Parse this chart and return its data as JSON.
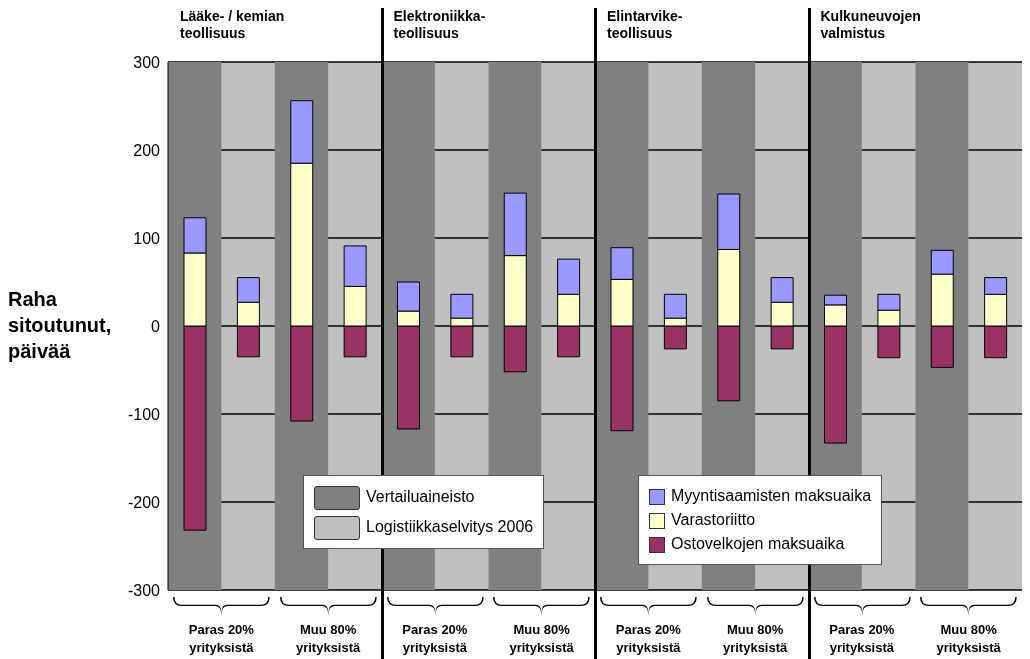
{
  "chart_data": {
    "type": "bar",
    "stacked": true,
    "ylabel": "Raha sitoutunut, päivää",
    "annotations": [
      "Lääke- / kemian\nteollisuus",
      "Elektroniikka-\nteollisuus",
      "Elintarvike-\nteollisuus",
      "Kulkuneuvojen\nvalmistus",
      "Vertailuaineisto",
      "Logistiikkaselvitys 2006"
    ],
    "categories": [
      "Paras 20% yrityksistä",
      null,
      "Muu 80% yrityksistä",
      null,
      "Paras 20% yrityksistä",
      null,
      "Muu 80% yrityksistä",
      null,
      "Paras 20% yrityksistä",
      null,
      "Muu 80% yrityksistä",
      null,
      "Paras 20% yrityksistä",
      null,
      "Muu 80% yrityksistä",
      null
    ],
    "series": [
      {
        "name": "Ostovelkojen maksuaika",
        "color": "#993366",
        "values": [
          -232,
          -35,
          -108,
          -35,
          -117,
          -35,
          -52,
          -35,
          -119,
          -26,
          -85,
          -26,
          -133,
          -36,
          -47,
          -36
        ]
      },
      {
        "name": "Varastoriitto",
        "color": "#ffffcc",
        "values": [
          83,
          27,
          185,
          45,
          17,
          9,
          80,
          36,
          53,
          9,
          87,
          27,
          24,
          18,
          59,
          36
        ]
      },
      {
        "name": "Myyntisaamisten maksuaika",
        "color": "#9999ff",
        "values": [
          40,
          28,
          71,
          46,
          33,
          27,
          71,
          40,
          36,
          27,
          63,
          28,
          11,
          18,
          27,
          19
        ]
      }
    ],
    "ylim": [
      -300,
      300
    ],
    "yticks": [
      -300,
      -200,
      -100,
      0,
      100,
      200,
      300
    ],
    "grid": "y",
    "legend": "bottom"
  }
}
